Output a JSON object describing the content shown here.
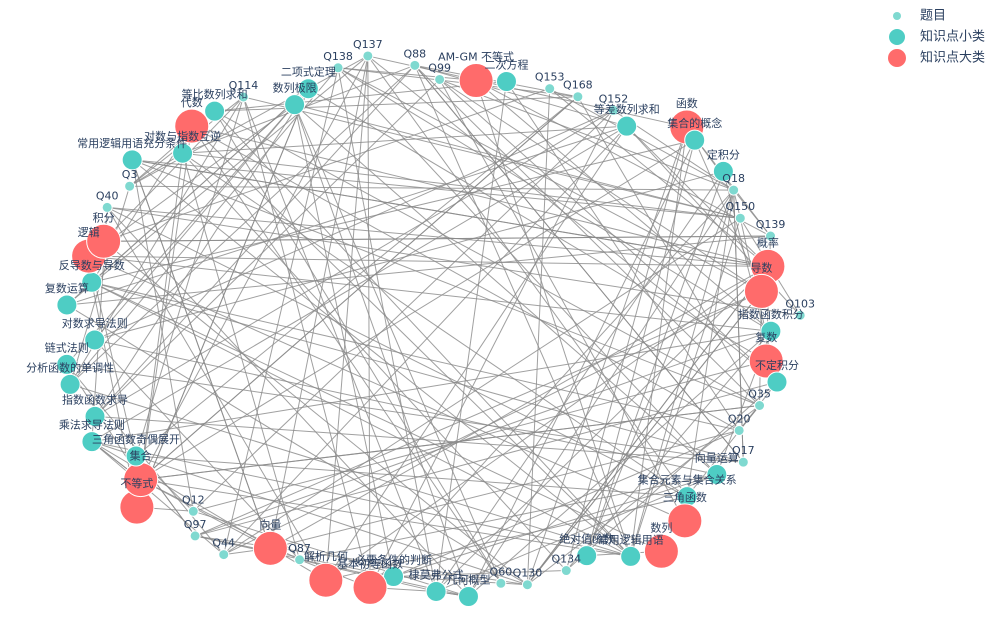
{
  "groups": [
    {
      "name": "题目",
      "color": "#7fd9d0",
      "nodes": [
        "Q150",
        "Q137",
        "Q139",
        "Q18",
        "Q134",
        "Q44",
        "Q103",
        "Q99",
        "Q130",
        "Q114",
        "Q168",
        "Q3",
        "Q138",
        "Q97",
        "Q153",
        "Q20",
        "Q88",
        "Q12",
        "Q152",
        "Q35",
        "Q87",
        "Q17",
        "Q60",
        "Q40"
      ]
    },
    {
      "name": "知识点小类",
      "color": "#4ecdc4",
      "nodes": [
        "三角函数奇偶展开",
        "指数函数积分",
        "乘法求导法则",
        "集合元素与集合关系",
        "分析函数的单调性",
        "常用逻辑用语",
        "链式法则",
        "反导数与导数",
        "对数求导法则",
        "集合的概念",
        "不定积分",
        "几何概型",
        "棣莫弗公式",
        "常用逻辑用语充分条件",
        "数列极限",
        "等比数列求和",
        "复数运算",
        "二次方程",
        "绝对值函数",
        "等差数列求和",
        "对数与指数互逆",
        "定积分",
        "必要条件的判断",
        "指数函数求导",
        "向量运算",
        "二项式定理"
      ]
    },
    {
      "name": "知识点大类",
      "color": "#ff6b6b",
      "nodes": [
        "AM-GM 不等式",
        "基本初等函数",
        "函数",
        "导数",
        "积分",
        "集合",
        "数列",
        "复数",
        "逻辑",
        "概率",
        "三角函数",
        "不等式",
        "向量",
        "代数",
        "解析几何"
      ]
    }
  ]
}
